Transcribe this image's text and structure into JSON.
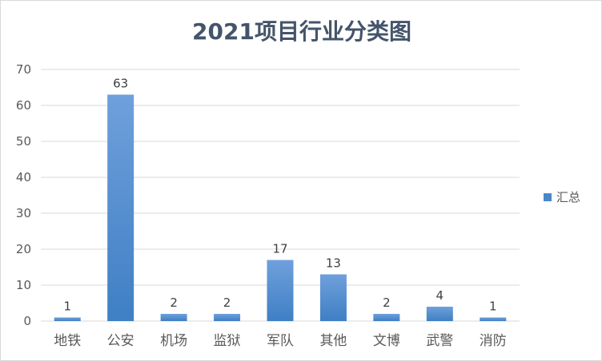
{
  "chart_data": {
    "type": "bar",
    "title": "2021项目行业分类图",
    "categories": [
      "地铁",
      "公安",
      "机场",
      "监狱",
      "军队",
      "其他",
      "文博",
      "武警",
      "消防"
    ],
    "series": [
      {
        "name": "汇总",
        "values": [
          1,
          63,
          2,
          2,
          17,
          13,
          2,
          4,
          1
        ]
      }
    ],
    "ylim": [
      0,
      70
    ],
    "yticks": [
      0,
      10,
      20,
      30,
      40,
      50,
      60,
      70
    ],
    "grid": true,
    "legend": "right",
    "colors": {
      "bar_top": "#6fa0dc",
      "bar_bottom": "#3f7fc4",
      "grid": "#d9d9d9",
      "legend_marker": "#4a86c8"
    }
  }
}
